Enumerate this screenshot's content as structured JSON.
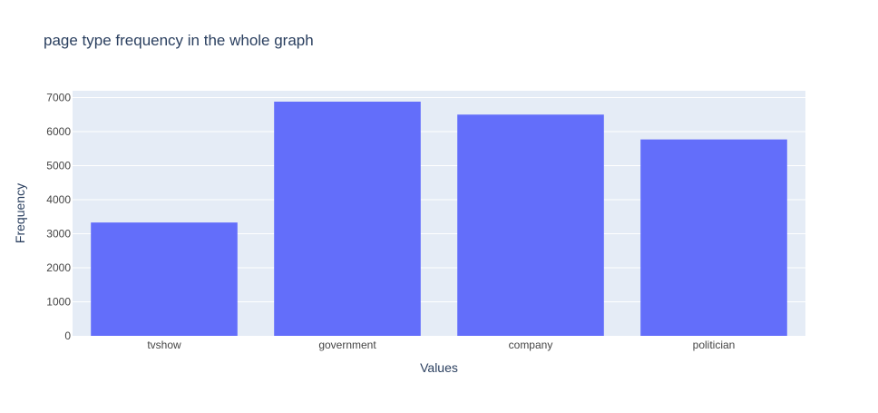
{
  "chart_data": {
    "type": "bar",
    "title": "page type frequency in the whole graph",
    "xlabel": "Values",
    "ylabel": "Frequency",
    "categories": [
      "tvshow",
      "government",
      "company",
      "politician"
    ],
    "values": [
      3330,
      6880,
      6500,
      5770
    ],
    "ylim": [
      0,
      7200
    ],
    "yticks": [
      0,
      1000,
      2000,
      3000,
      4000,
      5000,
      6000,
      7000
    ],
    "grid": true,
    "colors": {
      "bar": "#636efa",
      "plot_bg": "#e5ecf6",
      "grid": "#ffffff",
      "text": "#2a3f5f",
      "tick_text": "#444444"
    }
  }
}
